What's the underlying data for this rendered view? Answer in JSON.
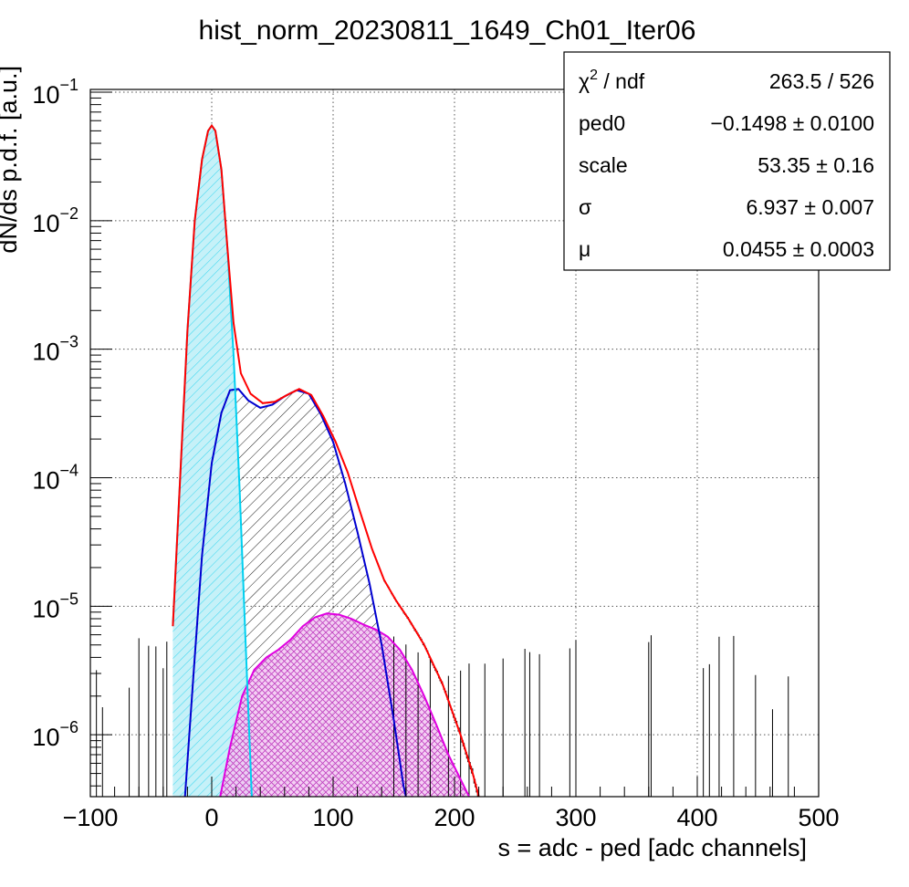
{
  "chart_data": {
    "type": "histogram",
    "title": "hist_norm_20230811_1649_Ch01_Iter06",
    "xlabel": "s = adc - ped [adc channels]",
    "ylabel": "dN/ds p.d.f. [a.u.]",
    "xlim": [
      -100,
      500
    ],
    "ylim": [
      3.3e-07,
      0.105
    ],
    "yscale": "log",
    "grid": true,
    "x_ticks": [
      "−100",
      "0",
      "100",
      "200",
      "300",
      "400",
      "500"
    ],
    "x_tick_values": [
      -100,
      0,
      100,
      200,
      300,
      400,
      500
    ],
    "y_ticks": [
      {
        "value": 1e-06,
        "base": "10",
        "exp": "−6"
      },
      {
        "value": 1e-05,
        "base": "10",
        "exp": "−5"
      },
      {
        "value": 0.0001,
        "base": "10",
        "exp": "−4"
      },
      {
        "value": 0.001,
        "base": "10",
        "exp": "−3"
      },
      {
        "value": 0.01,
        "base": "10",
        "exp": "−2"
      },
      {
        "value": 0.1,
        "base": "10",
        "exp": "−1"
      }
    ],
    "components": [
      {
        "role": "total fit",
        "color": "#ff0000",
        "points": [
          [
            -32,
            7e-06
          ],
          [
            -26,
            0.0001
          ],
          [
            -20,
            0.0014
          ],
          [
            -14,
            0.01
          ],
          [
            -8,
            0.03
          ],
          [
            -3,
            0.05
          ],
          [
            0,
            0.055
          ],
          [
            3,
            0.05
          ],
          [
            8,
            0.025
          ],
          [
            13,
            0.006
          ],
          [
            18,
            0.0016
          ],
          [
            24,
            0.00065
          ],
          [
            32,
            0.00045
          ],
          [
            42,
            0.00038
          ],
          [
            52,
            0.00039
          ],
          [
            62,
            0.00044
          ],
          [
            72,
            0.00049
          ],
          [
            82,
            0.00044
          ],
          [
            92,
            0.0003
          ],
          [
            102,
            0.00019
          ],
          [
            112,
            0.00011
          ],
          [
            122,
            5.5e-05
          ],
          [
            132,
            2.8e-05
          ],
          [
            142,
            1.6e-05
          ],
          [
            152,
            1.1e-05
          ],
          [
            162,
            8e-06
          ],
          [
            175,
            5e-06
          ],
          [
            190,
            2.5e-06
          ],
          [
            205,
            1e-06
          ],
          [
            215,
            5e-07
          ],
          [
            220,
            3.3e-07
          ]
        ]
      },
      {
        "role": "pedestal",
        "color": "#00d0f0",
        "fill": "#c6f1f8",
        "points": [
          [
            -32,
            7e-06
          ],
          [
            -26,
            0.0001
          ],
          [
            -20,
            0.0014
          ],
          [
            -14,
            0.01
          ],
          [
            -8,
            0.03
          ],
          [
            -3,
            0.05
          ],
          [
            0,
            0.055
          ],
          [
            3,
            0.05
          ],
          [
            8,
            0.025
          ],
          [
            13,
            0.006
          ],
          [
            18,
            0.0009
          ],
          [
            23,
            8e-05
          ],
          [
            28,
            5e-06
          ],
          [
            33,
            3.3e-07
          ]
        ]
      },
      {
        "role": "single p.e.",
        "color": "#0000d0",
        "points": [
          [
            -22,
            3.3e-07
          ],
          [
            -15,
            3e-06
          ],
          [
            -8,
            2.5e-05
          ],
          [
            0,
            0.00013
          ],
          [
            8,
            0.00032
          ],
          [
            15,
            0.00048
          ],
          [
            22,
            0.00049
          ],
          [
            30,
            0.0004
          ],
          [
            40,
            0.00035
          ],
          [
            50,
            0.00037
          ],
          [
            60,
            0.00043
          ],
          [
            70,
            0.00048
          ],
          [
            80,
            0.00045
          ],
          [
            90,
            0.00031
          ],
          [
            100,
            0.00019
          ],
          [
            110,
            9e-05
          ],
          [
            120,
            3.8e-05
          ],
          [
            130,
            1.5e-05
          ],
          [
            140,
            5e-06
          ],
          [
            150,
            1.3e-06
          ],
          [
            158,
            4e-07
          ],
          [
            160,
            3.3e-07
          ]
        ]
      },
      {
        "role": "multi p.e.",
        "color": "#e000e0",
        "fill": "#f2c8f2",
        "points": [
          [
            7,
            3.3e-07
          ],
          [
            15,
            8e-07
          ],
          [
            25,
            2e-06
          ],
          [
            35,
            3.2e-06
          ],
          [
            45,
            4e-06
          ],
          [
            55,
            4.6e-06
          ],
          [
            65,
            5.5e-06
          ],
          [
            75,
            7e-06
          ],
          [
            85,
            8.2e-06
          ],
          [
            95,
            8.8e-06
          ],
          [
            105,
            8.6e-06
          ],
          [
            115,
            8e-06
          ],
          [
            125,
            7.2e-06
          ],
          [
            135,
            6.6e-06
          ],
          [
            145,
            5.8e-06
          ],
          [
            155,
            4.6e-06
          ],
          [
            165,
            3.2e-06
          ],
          [
            175,
            2e-06
          ],
          [
            185,
            1.2e-06
          ],
          [
            195,
            7e-07
          ],
          [
            205,
            4.5e-07
          ],
          [
            212,
            3.3e-07
          ]
        ]
      }
    ],
    "stats_box": {
      "rows": [
        {
          "label": "χ",
          "label_sup": "2",
          "label_rest": " / ndf",
          "value": "263.5 / 526"
        },
        {
          "label": "ped0",
          "label_sup": "",
          "label_rest": "",
          "value": "−0.1498 ± 0.0100"
        },
        {
          "label": "scale",
          "label_sup": "",
          "label_rest": "",
          "value": "53.35 ± 0.16"
        },
        {
          "label": "σ",
          "label_sup": "",
          "label_rest": "",
          "value": "6.937 ± 0.007"
        },
        {
          "label": "μ",
          "label_sup": "",
          "label_rest": "",
          "value": "0.0455 ± 0.0003"
        }
      ]
    }
  }
}
